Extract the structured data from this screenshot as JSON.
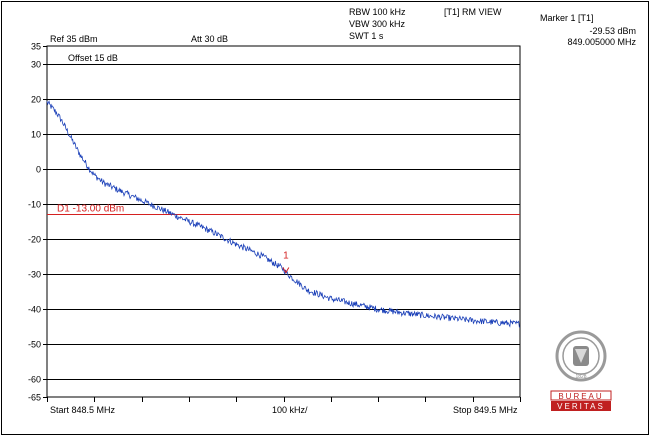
{
  "header": {
    "ref_level": "Ref 35 dBm",
    "attenuation": "Att 30 dB",
    "rbw": "RBW 100 kHz",
    "vbw": "VBW 300 kHz",
    "swt": "SWT 1 s",
    "trace_mode": "[T1] RM VIEW",
    "marker_title": "Marker 1 [T1]",
    "marker_level": "-29.53 dBm",
    "marker_freq": "849.005000 MHz",
    "offset": "Offset 15 dB"
  },
  "footer": {
    "start": "Start 848.5 MHz",
    "span": "100 kHz/",
    "stop": "Stop 849.5 MHz"
  },
  "logo": {
    "lettering": [
      "BUREAU",
      "VERITAS",
      "1828"
    ]
  },
  "colors": {
    "trace": "#1a3fb8",
    "limit_line": "#d42020",
    "marker": "#d42020",
    "grid": "#000000"
  },
  "chart_data": {
    "type": "line",
    "x_unit": "MHz",
    "y_unit": "dBm",
    "xlim": [
      848.5,
      849.5
    ],
    "ylim": [
      -65,
      35
    ],
    "y_ticks": [
      {
        "value": 35,
        "label": "35"
      },
      {
        "value": 30,
        "label": "30"
      },
      {
        "value": 20,
        "label": "20"
      },
      {
        "value": 10,
        "label": "10"
      },
      {
        "value": 0,
        "label": "0"
      },
      {
        "value": -10,
        "label": "-10"
      },
      {
        "value": -20,
        "label": "-20"
      },
      {
        "value": -30,
        "label": "-30"
      },
      {
        "value": -40,
        "label": "-40"
      },
      {
        "value": -50,
        "label": "-50"
      },
      {
        "value": -60,
        "label": "-60"
      },
      {
        "value": -65,
        "label": "-65"
      }
    ],
    "grid": true,
    "display_line": {
      "label": "D1 -13.00 dBm",
      "value": -13.0
    },
    "marker": {
      "label": "1",
      "x": 849.005,
      "y": -29.53
    },
    "series": [
      {
        "x": [
          848.5,
          848.51,
          848.52,
          848.53,
          848.54,
          848.55,
          848.56,
          848.57,
          848.58,
          848.59,
          848.6,
          848.62,
          848.65,
          848.7,
          848.75,
          848.8,
          848.85,
          848.9,
          848.95,
          849.0,
          849.005,
          849.05,
          849.1,
          849.15,
          849.2,
          849.25,
          849.3,
          849.35,
          849.4,
          849.45,
          849.5
        ],
        "y": [
          19.0,
          17.5,
          16.0,
          14.0,
          11.5,
          9.0,
          6.5,
          4.0,
          2.0,
          0.0,
          -1.8,
          -4.0,
          -6.0,
          -9.0,
          -12.0,
          -15.0,
          -18.0,
          -21.5,
          -24.5,
          -28.5,
          -29.53,
          -34.5,
          -37.0,
          -38.5,
          -40.0,
          -41.0,
          -41.8,
          -42.5,
          -43.2,
          -43.8,
          -44.2
        ]
      }
    ]
  }
}
